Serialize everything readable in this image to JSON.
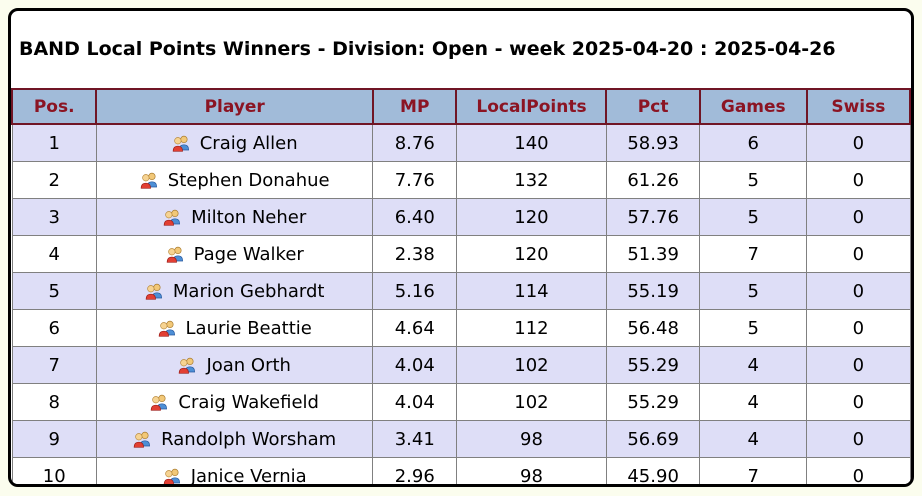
{
  "title": "BAND Local Points Winners - Division: Open - week 2025-04-20 : 2025-04-26",
  "table": {
    "columns": [
      "Pos.",
      "Player",
      "MP",
      "LocalPoints",
      "Pct",
      "Games",
      "Swiss"
    ],
    "rows": [
      {
        "pos": "1",
        "player": "Craig Allen",
        "mp": "8.76",
        "local_points": "140",
        "pct": "58.93",
        "games": "6",
        "swiss": "0"
      },
      {
        "pos": "2",
        "player": "Stephen Donahue",
        "mp": "7.76",
        "local_points": "132",
        "pct": "61.26",
        "games": "5",
        "swiss": "0"
      },
      {
        "pos": "3",
        "player": "Milton Neher",
        "mp": "6.40",
        "local_points": "120",
        "pct": "57.76",
        "games": "5",
        "swiss": "0"
      },
      {
        "pos": "4",
        "player": "Page Walker",
        "mp": "2.38",
        "local_points": "120",
        "pct": "51.39",
        "games": "7",
        "swiss": "0"
      },
      {
        "pos": "5",
        "player": "Marion Gebhardt",
        "mp": "5.16",
        "local_points": "114",
        "pct": "55.19",
        "games": "5",
        "swiss": "0"
      },
      {
        "pos": "6",
        "player": "Laurie Beattie",
        "mp": "4.64",
        "local_points": "112",
        "pct": "56.48",
        "games": "5",
        "swiss": "0"
      },
      {
        "pos": "7",
        "player": "Joan Orth",
        "mp": "4.04",
        "local_points": "102",
        "pct": "55.29",
        "games": "4",
        "swiss": "0"
      },
      {
        "pos": "8",
        "player": "Craig Wakefield",
        "mp": "4.04",
        "local_points": "102",
        "pct": "55.29",
        "games": "4",
        "swiss": "0"
      },
      {
        "pos": "9",
        "player": "Randolph Worsham",
        "mp": "3.41",
        "local_points": "98",
        "pct": "56.69",
        "games": "4",
        "swiss": "0"
      },
      {
        "pos": "10",
        "player": "Janice Vernia",
        "mp": "2.96",
        "local_points": "98",
        "pct": "45.90",
        "games": "7",
        "swiss": "0"
      }
    ]
  },
  "icons": {
    "player_icon": "two-people-icon"
  },
  "colors": {
    "page_bg": "#fbfdee",
    "panel_bg": "#ffffff",
    "panel_border": "#000000",
    "header_bg": "#a1bbd9",
    "header_text": "#8b1423",
    "header_border": "#701525",
    "row_alt_bg": "#dedef7",
    "row_bg": "#ffffff",
    "cell_border": "#808080",
    "body_text": "#000000"
  }
}
